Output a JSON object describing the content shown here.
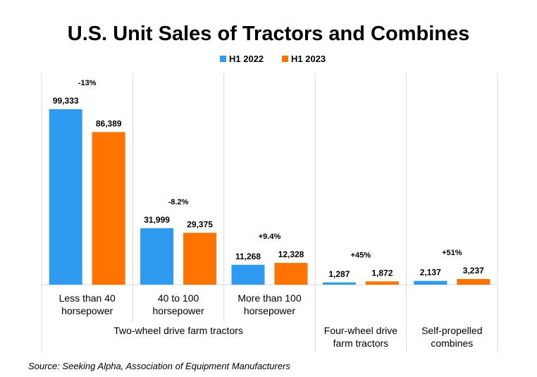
{
  "chart_data": {
    "type": "bar",
    "title": "U.S. Unit Sales of Tractors and Combines",
    "legend_position": "top-center",
    "series": [
      {
        "name": "H1 2022",
        "color": "#2e9bf0",
        "values": [
          99333,
          31999,
          11268,
          1287,
          2137
        ],
        "value_labels": [
          "99,333",
          "31,999",
          "11,268",
          "1,287",
          "2,137"
        ]
      },
      {
        "name": "H1 2023",
        "color": "#ff7300",
        "values": [
          86389,
          29375,
          12328,
          1872,
          3237
        ],
        "value_labels": [
          "86,389",
          "29,375",
          "12,328",
          "1,872",
          "3,237"
        ]
      }
    ],
    "categories": [
      {
        "lines": [
          "Less than 40",
          "horsepower"
        ]
      },
      {
        "lines": [
          "40 to 100",
          "horsepower"
        ]
      },
      {
        "lines": [
          "More than 100",
          "horsepower"
        ]
      },
      {
        "lines": []
      },
      {
        "lines": []
      }
    ],
    "changes": [
      "-13%",
      "-8.2%",
      "+9.4%",
      "+45%",
      "+51%"
    ],
    "groups": [
      {
        "lines": [
          "Two-wheel drive farm tractors"
        ],
        "span": [
          0,
          2
        ]
      },
      {
        "lines": [
          "Four-wheel drive",
          "farm tractors"
        ],
        "span": [
          3,
          3
        ]
      },
      {
        "lines": [
          "Self-propelled",
          "combines"
        ],
        "span": [
          4,
          4
        ]
      }
    ],
    "ylim": [
      0,
      110000
    ],
    "grid": false,
    "source": "Source: Seeking Alpha, Association of Equipment Manufacturers"
  }
}
